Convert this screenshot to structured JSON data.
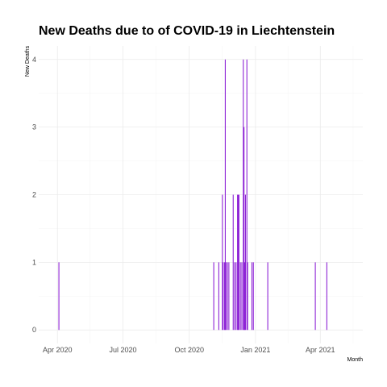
{
  "chart_data": {
    "type": "bar",
    "title": "New Deaths due to of COVID-19 in Liechtenstein",
    "xlabel": "Month",
    "ylabel": "New Deaths",
    "x_tick_labels": [
      "Apr 2020",
      "Jul 2020",
      "Oct 2020",
      "Jan 2021",
      "Apr 2021"
    ],
    "x_tick_dates": [
      "2020-04-01",
      "2020-07-01",
      "2020-10-01",
      "2021-01-01",
      "2021-04-01"
    ],
    "xlim": [
      "2020-03-06",
      "2021-05-30"
    ],
    "y_ticks": [
      0,
      1,
      2,
      3,
      4
    ],
    "ylim": [
      -0.2,
      4.2
    ],
    "grid": true,
    "bar_color": "#8e24d6",
    "series": [
      {
        "dates": [
          "2020-04-03",
          "2020-11-04",
          "2020-11-11",
          "2020-11-16",
          "2020-11-17",
          "2020-11-19",
          "2020-11-20",
          "2020-11-21",
          "2020-11-23",
          "2020-11-25",
          "2020-12-01",
          "2020-12-03",
          "2020-12-05",
          "2020-12-07",
          "2020-12-08",
          "2020-12-09",
          "2020-12-11",
          "2020-12-13",
          "2020-12-15",
          "2020-12-16",
          "2020-12-17",
          "2020-12-18",
          "2020-12-20",
          "2020-12-21",
          "2020-12-27",
          "2020-12-29",
          "2021-01-18",
          "2021-03-25",
          "2021-04-10"
        ],
        "values": [
          1,
          1,
          1,
          2,
          1,
          1,
          4,
          1,
          1,
          1,
          2,
          1,
          1,
          2,
          2,
          2,
          1,
          1,
          4,
          3,
          1,
          2,
          4,
          1,
          1,
          1,
          1,
          1,
          1
        ]
      }
    ]
  }
}
